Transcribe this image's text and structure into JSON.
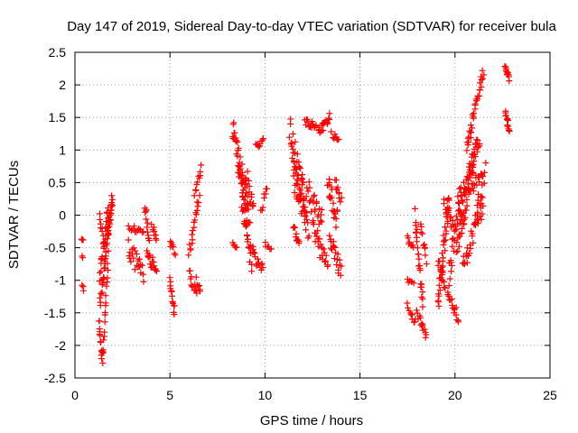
{
  "chart_data": {
    "type": "scatter",
    "title": "Day 147 of 2019, Sidereal Day-to-day VTEC variation (SDTVAR) for receiver bula",
    "xlabel": "GPS time / hours",
    "ylabel": "SDTVAR / TECUs",
    "xlim": [
      0,
      25
    ],
    "ylim": [
      -2.5,
      2.5
    ],
    "xticks": [
      0,
      5,
      10,
      15,
      20,
      25
    ],
    "yticks": [
      -2.5,
      -2,
      -1.5,
      -1,
      -0.5,
      0,
      0.5,
      1,
      1.5,
      2,
      2.5
    ],
    "grid": true,
    "marker": "+",
    "color": "#ff0000",
    "segments": [
      {
        "x0": 0.35,
        "x1": 0.45,
        "y0": -0.35,
        "y1": -0.38,
        "noise": 0.03,
        "n": 3
      },
      {
        "x0": 0.35,
        "x1": 0.42,
        "y0": -0.62,
        "y1": -0.65,
        "noise": 0.02,
        "n": 2
      },
      {
        "x0": 0.35,
        "x1": 0.45,
        "y0": -1.1,
        "y1": -1.15,
        "noise": 0.03,
        "n": 3
      },
      {
        "x0": 1.25,
        "x1": 1.45,
        "y0": -1.6,
        "y1": -2.25,
        "noise": 0.06,
        "n": 14
      },
      {
        "x0": 1.3,
        "x1": 1.6,
        "y0": -1.35,
        "y1": -0.7,
        "noise": 0.1,
        "n": 16
      },
      {
        "x0": 1.3,
        "x1": 1.75,
        "y0": -0.9,
        "y1": 0.1,
        "noise": 0.15,
        "n": 20
      },
      {
        "x0": 1.45,
        "x1": 1.75,
        "y0": -2.2,
        "y1": -0.6,
        "noise": 0.1,
        "n": 18
      },
      {
        "x0": 1.55,
        "x1": 1.95,
        "y0": -0.7,
        "y1": 0.2,
        "noise": 0.1,
        "n": 18
      },
      {
        "x0": 1.7,
        "x1": 2.0,
        "y0": -0.3,
        "y1": 0.22,
        "noise": 0.08,
        "n": 14
      },
      {
        "x0": 1.3,
        "x1": 1.55,
        "y0": 0.0,
        "y1": -0.5,
        "noise": 0.1,
        "n": 10
      },
      {
        "x0": 2.8,
        "x1": 3.6,
        "y0": -0.2,
        "y1": -0.25,
        "noise": 0.05,
        "n": 12
      },
      {
        "x0": 2.8,
        "x1": 3.6,
        "y0": -0.5,
        "y1": -0.9,
        "noise": 0.15,
        "n": 22
      },
      {
        "x0": 3.7,
        "x1": 3.9,
        "y0": 0.15,
        "y1": -0.45,
        "noise": 0.08,
        "n": 12
      },
      {
        "x0": 3.8,
        "x1": 4.05,
        "y0": -0.6,
        "y1": -0.8,
        "noise": 0.08,
        "n": 10
      },
      {
        "x0": 4.05,
        "x1": 4.3,
        "y0": -0.2,
        "y1": -0.35,
        "noise": 0.06,
        "n": 8
      },
      {
        "x0": 4.05,
        "x1": 4.3,
        "y0": -0.65,
        "y1": -0.85,
        "noise": 0.08,
        "n": 8
      },
      {
        "x0": 5.0,
        "x1": 5.25,
        "y0": -0.4,
        "y1": -0.6,
        "noise": 0.06,
        "n": 8
      },
      {
        "x0": 5.0,
        "x1": 5.25,
        "y0": -1.0,
        "y1": -1.55,
        "noise": 0.08,
        "n": 14
      },
      {
        "x0": 6.0,
        "x1": 6.55,
        "y0": -0.6,
        "y1": 0.3,
        "noise": 0.1,
        "n": 18
      },
      {
        "x0": 6.3,
        "x1": 6.65,
        "y0": 0.3,
        "y1": 0.75,
        "noise": 0.06,
        "n": 10
      },
      {
        "x0": 6.0,
        "x1": 6.4,
        "y0": -0.85,
        "y1": -1.25,
        "noise": 0.08,
        "n": 12
      },
      {
        "x0": 6.4,
        "x1": 6.6,
        "y0": -1.0,
        "y1": -1.15,
        "noise": 0.05,
        "n": 6
      },
      {
        "x0": 8.3,
        "x1": 9.0,
        "y0": 1.35,
        "y1": 0.3,
        "noise": 0.18,
        "n": 34
      },
      {
        "x0": 8.3,
        "x1": 8.5,
        "y0": -0.4,
        "y1": -0.5,
        "noise": 0.05,
        "n": 6
      },
      {
        "x0": 8.6,
        "x1": 9.2,
        "y0": 0.7,
        "y1": 0.0,
        "noise": 0.15,
        "n": 24
      },
      {
        "x0": 8.8,
        "x1": 9.3,
        "y0": 0.2,
        "y1": -0.8,
        "noise": 0.18,
        "n": 24
      },
      {
        "x0": 9.0,
        "x1": 9.4,
        "y0": 0.6,
        "y1": 0.1,
        "noise": 0.15,
        "n": 14
      },
      {
        "x0": 9.3,
        "x1": 9.9,
        "y0": -0.55,
        "y1": -0.85,
        "noise": 0.1,
        "n": 16
      },
      {
        "x0": 9.5,
        "x1": 9.9,
        "y0": 1.05,
        "y1": 1.15,
        "noise": 0.05,
        "n": 10
      },
      {
        "x0": 9.8,
        "x1": 10.1,
        "y0": 0.1,
        "y1": 0.45,
        "noise": 0.08,
        "n": 8
      },
      {
        "x0": 10.0,
        "x1": 10.3,
        "y0": -0.45,
        "y1": -0.55,
        "noise": 0.05,
        "n": 6
      },
      {
        "x0": 11.3,
        "x1": 12.1,
        "y0": 1.3,
        "y1": 0.2,
        "noise": 0.22,
        "n": 40
      },
      {
        "x0": 11.5,
        "x1": 12.3,
        "y0": 0.6,
        "y1": -0.2,
        "noise": 0.2,
        "n": 32
      },
      {
        "x0": 11.5,
        "x1": 11.8,
        "y0": -0.2,
        "y1": -0.45,
        "noise": 0.08,
        "n": 10
      },
      {
        "x0": 12.1,
        "x1": 12.7,
        "y0": 1.45,
        "y1": 1.35,
        "noise": 0.06,
        "n": 16
      },
      {
        "x0": 12.2,
        "x1": 13.0,
        "y0": 0.4,
        "y1": -0.1,
        "noise": 0.2,
        "n": 24
      },
      {
        "x0": 12.5,
        "x1": 13.3,
        "y0": -0.2,
        "y1": -0.8,
        "noise": 0.15,
        "n": 24
      },
      {
        "x0": 12.8,
        "x1": 13.4,
        "y0": 1.25,
        "y1": 1.5,
        "noise": 0.08,
        "n": 18
      },
      {
        "x0": 13.3,
        "x1": 13.8,
        "y0": 0.5,
        "y1": -0.1,
        "noise": 0.18,
        "n": 20
      },
      {
        "x0": 13.4,
        "x1": 14.0,
        "y0": -0.3,
        "y1": -0.9,
        "noise": 0.12,
        "n": 20
      },
      {
        "x0": 13.5,
        "x1": 13.9,
        "y0": 1.25,
        "y1": 1.15,
        "noise": 0.06,
        "n": 8
      },
      {
        "x0": 13.7,
        "x1": 14.0,
        "y0": 0.5,
        "y1": 0.25,
        "noise": 0.1,
        "n": 10
      },
      {
        "x0": 17.5,
        "x1": 17.8,
        "y0": -0.35,
        "y1": -0.55,
        "noise": 0.06,
        "n": 8
      },
      {
        "x0": 17.5,
        "x1": 17.8,
        "y0": -1.0,
        "y1": -1.05,
        "noise": 0.03,
        "n": 6
      },
      {
        "x0": 17.5,
        "x1": 17.9,
        "y0": -1.4,
        "y1": -1.65,
        "noise": 0.06,
        "n": 10
      },
      {
        "x0": 17.9,
        "x1": 18.3,
        "y0": 0.05,
        "y1": -1.4,
        "noise": 0.15,
        "n": 24
      },
      {
        "x0": 18.0,
        "x1": 18.5,
        "y0": -1.5,
        "y1": -1.85,
        "noise": 0.06,
        "n": 14
      },
      {
        "x0": 18.2,
        "x1": 18.5,
        "y0": -0.15,
        "y1": -0.65,
        "noise": 0.1,
        "n": 10
      },
      {
        "x0": 19.1,
        "x1": 19.7,
        "y0": -1.4,
        "y1": 0.3,
        "noise": 0.2,
        "n": 40
      },
      {
        "x0": 19.1,
        "x1": 19.5,
        "y0": -0.7,
        "y1": -1.1,
        "noise": 0.1,
        "n": 10
      },
      {
        "x0": 19.4,
        "x1": 19.9,
        "y0": 0.2,
        "y1": -0.2,
        "noise": 0.1,
        "n": 12
      },
      {
        "x0": 19.6,
        "x1": 20.2,
        "y0": -1.2,
        "y1": -1.6,
        "noise": 0.1,
        "n": 16
      },
      {
        "x0": 19.7,
        "x1": 20.3,
        "y0": -0.9,
        "y1": 0.45,
        "noise": 0.2,
        "n": 28
      },
      {
        "x0": 20.1,
        "x1": 21.0,
        "y0": -0.6,
        "y1": 0.9,
        "noise": 0.2,
        "n": 40
      },
      {
        "x0": 20.2,
        "x1": 21.3,
        "y0": 0.1,
        "y1": 1.2,
        "noise": 0.15,
        "n": 40
      },
      {
        "x0": 20.4,
        "x1": 21.5,
        "y0": -0.8,
        "y1": 0.2,
        "noise": 0.15,
        "n": 34
      },
      {
        "x0": 20.8,
        "x1": 21.4,
        "y0": 0.3,
        "y1": 0.7,
        "noise": 0.1,
        "n": 14
      },
      {
        "x0": 20.6,
        "x1": 21.5,
        "y0": 1.0,
        "y1": 2.25,
        "noise": 0.12,
        "n": 34
      },
      {
        "x0": 21.1,
        "x1": 21.6,
        "y0": 0.0,
        "y1": 0.7,
        "noise": 0.12,
        "n": 14
      },
      {
        "x0": 22.65,
        "x1": 22.85,
        "y0": 2.3,
        "y1": 2.1,
        "noise": 0.04,
        "n": 12
      },
      {
        "x0": 22.65,
        "x1": 22.85,
        "y0": 1.6,
        "y1": 1.3,
        "noise": 0.05,
        "n": 12
      }
    ]
  }
}
